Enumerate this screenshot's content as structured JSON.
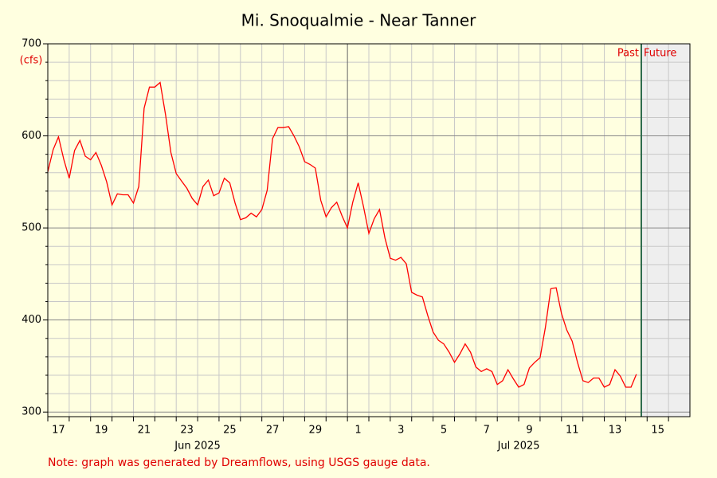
{
  "chart_data": {
    "type": "line",
    "title": "Mi. Snoqualmie - Near Tanner",
    "y_unit": "(cfs)",
    "note": "Note: graph was generated by Dreamflows, using USGS gauge data.",
    "past_label": "Past",
    "future_label": "Future",
    "now": "2025-07-14 17:30",
    "xlim": [
      "2025-06-17 00:00",
      "2025-07-17 00:00"
    ],
    "xticks": [
      {
        "value": "2025-06-17",
        "label": "17"
      },
      {
        "value": "2025-06-19",
        "label": "19"
      },
      {
        "value": "2025-06-21",
        "label": "21"
      },
      {
        "value": "2025-06-23",
        "label": "23"
      },
      {
        "value": "2025-06-25",
        "label": "25"
      },
      {
        "value": "2025-06-27",
        "label": "27"
      },
      {
        "value": "2025-06-29",
        "label": "29"
      },
      {
        "value": "2025-07-01",
        "label": "1"
      },
      {
        "value": "2025-07-03",
        "label": "3"
      },
      {
        "value": "2025-07-05",
        "label": "5"
      },
      {
        "value": "2025-07-07",
        "label": "7"
      },
      {
        "value": "2025-07-09",
        "label": "9"
      },
      {
        "value": "2025-07-11",
        "label": "11"
      },
      {
        "value": "2025-07-13",
        "label": "13"
      },
      {
        "value": "2025-07-15",
        "label": "15"
      }
    ],
    "minor_xticks": [
      "2025-06-18",
      "2025-06-20",
      "2025-06-22",
      "2025-06-24",
      "2025-06-26",
      "2025-06-28",
      "2025-06-30",
      "2025-07-02",
      "2025-07-04",
      "2025-07-06",
      "2025-07-08",
      "2025-07-10",
      "2025-07-12",
      "2025-07-14",
      "2025-07-16"
    ],
    "month_labels": [
      {
        "value": "2025-06-24",
        "label": "Jun 2025"
      },
      {
        "value": "2025-07-09",
        "label": "Jul 2025"
      }
    ],
    "ylim": [
      295,
      700
    ],
    "yticks": [
      300,
      400,
      500,
      600,
      700
    ],
    "minor_yticks": [
      320,
      340,
      360,
      380,
      420,
      440,
      460,
      480,
      520,
      540,
      560,
      580,
      620,
      640,
      660,
      680
    ],
    "grid": true,
    "background": "#ffffe0",
    "future_color": "#eeeeee",
    "now_color": "#2e6b4e",
    "x": [
      "2025-06-17 00:00",
      "2025-06-17 06:00",
      "2025-06-17 12:00",
      "2025-06-17 18:00",
      "2025-06-18 00:00",
      "2025-06-18 06:00",
      "2025-06-18 12:00",
      "2025-06-18 18:00",
      "2025-06-19 00:00",
      "2025-06-19 06:00",
      "2025-06-19 12:00",
      "2025-06-19 18:00",
      "2025-06-20 00:00",
      "2025-06-20 06:00",
      "2025-06-20 12:00",
      "2025-06-20 18:00",
      "2025-06-21 00:00",
      "2025-06-21 06:00",
      "2025-06-21 12:00",
      "2025-06-21 18:00",
      "2025-06-22 00:00",
      "2025-06-22 06:00",
      "2025-06-22 12:00",
      "2025-06-22 18:00",
      "2025-06-23 00:00",
      "2025-06-23 06:00",
      "2025-06-23 12:00",
      "2025-06-23 18:00",
      "2025-06-24 00:00",
      "2025-06-24 06:00",
      "2025-06-24 12:00",
      "2025-06-24 18:00",
      "2025-06-25 00:00",
      "2025-06-25 06:00",
      "2025-06-25 12:00",
      "2025-06-25 18:00",
      "2025-06-26 00:00",
      "2025-06-26 06:00",
      "2025-06-26 12:00",
      "2025-06-26 18:00",
      "2025-06-27 00:00",
      "2025-06-27 06:00",
      "2025-06-27 12:00",
      "2025-06-27 18:00",
      "2025-06-28 00:00",
      "2025-06-28 06:00",
      "2025-06-28 12:00",
      "2025-06-28 18:00",
      "2025-06-29 00:00",
      "2025-06-29 06:00",
      "2025-06-29 12:00",
      "2025-06-29 18:00",
      "2025-06-30 00:00",
      "2025-06-30 06:00",
      "2025-06-30 12:00",
      "2025-06-30 18:00",
      "2025-07-01 00:00",
      "2025-07-01 06:00",
      "2025-07-01 12:00",
      "2025-07-01 18:00",
      "2025-07-02 00:00",
      "2025-07-02 06:00",
      "2025-07-02 12:00",
      "2025-07-02 18:00",
      "2025-07-03 00:00",
      "2025-07-03 06:00",
      "2025-07-03 12:00",
      "2025-07-03 18:00",
      "2025-07-04 00:00",
      "2025-07-04 06:00",
      "2025-07-04 12:00",
      "2025-07-04 18:00",
      "2025-07-05 00:00",
      "2025-07-05 06:00",
      "2025-07-05 12:00",
      "2025-07-05 18:00",
      "2025-07-06 00:00",
      "2025-07-06 06:00",
      "2025-07-06 12:00",
      "2025-07-06 18:00",
      "2025-07-07 00:00",
      "2025-07-07 06:00",
      "2025-07-07 12:00",
      "2025-07-07 18:00",
      "2025-07-08 00:00",
      "2025-07-08 06:00",
      "2025-07-08 12:00",
      "2025-07-08 18:00",
      "2025-07-09 00:00",
      "2025-07-09 06:00",
      "2025-07-09 12:00",
      "2025-07-09 18:00",
      "2025-07-10 00:00",
      "2025-07-10 06:00",
      "2025-07-10 12:00",
      "2025-07-10 18:00",
      "2025-07-11 00:00",
      "2025-07-11 06:00",
      "2025-07-11 12:00",
      "2025-07-11 18:00",
      "2025-07-12 00:00",
      "2025-07-12 06:00",
      "2025-07-12 12:00",
      "2025-07-12 18:00",
      "2025-07-13 00:00",
      "2025-07-13 06:00",
      "2025-07-13 12:00",
      "2025-07-13 18:00",
      "2025-07-14 00:00",
      "2025-07-14 06:00",
      "2025-07-14 12:00"
    ],
    "series": [
      {
        "color": "#ff0000",
        "values": [
          561,
          585,
          599,
          574,
          554,
          584,
          595,
          578,
          574,
          582,
          568,
          550,
          525,
          537,
          536,
          536,
          527,
          545,
          630,
          653,
          653,
          658,
          623,
          582,
          559,
          551,
          543,
          532,
          525,
          545,
          552,
          535,
          538,
          554,
          549,
          527,
          509,
          511,
          516,
          512,
          520,
          541,
          597,
          609,
          609,
          610,
          600,
          588,
          572,
          569,
          565,
          530,
          512,
          522,
          528,
          513,
          500,
          528,
          549,
          523,
          494,
          510,
          520,
          489,
          467,
          465,
          468,
          461,
          430,
          427,
          425,
          405,
          387,
          378,
          374,
          365,
          354,
          363,
          374,
          365,
          349,
          344,
          347,
          344,
          330,
          334,
          346,
          336,
          327,
          330,
          348,
          354,
          359,
          392,
          434,
          435,
          407,
          389,
          377,
          354,
          334,
          332,
          337,
          337,
          327,
          330,
          346,
          339,
          327,
          327,
          341
        ]
      }
    ]
  }
}
